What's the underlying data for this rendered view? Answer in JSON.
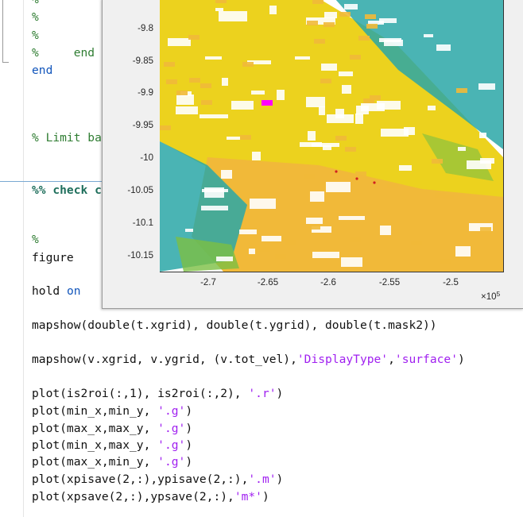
{
  "editor": {
    "lines": [
      {
        "id": "l1",
        "top": -10,
        "segments": [
          {
            "cls": "cm",
            "text": "%"
          }
        ]
      },
      {
        "id": "l2",
        "top": 12,
        "segments": [
          {
            "cls": "cm",
            "text": "%"
          }
        ]
      },
      {
        "id": "l3",
        "top": 35,
        "segments": [
          {
            "cls": "cm",
            "text": "%"
          }
        ]
      },
      {
        "id": "l4",
        "top": 57,
        "segments": [
          {
            "cls": "cm",
            "text": "%     end"
          }
        ]
      },
      {
        "id": "l5",
        "top": 79,
        "segments": [
          {
            "cls": "kw",
            "text": "end"
          }
        ]
      },
      {
        "id": "l6",
        "top": 164,
        "segments": [
          {
            "cls": "cm",
            "text": "% Limit ba"
          }
        ]
      },
      {
        "id": "l7",
        "top": 230,
        "segments": [
          {
            "cls": "kw-dark",
            "text": "%% check c"
          }
        ]
      },
      {
        "id": "l8",
        "top": 292,
        "segments": [
          {
            "cls": "cm",
            "text": "%"
          }
        ]
      },
      {
        "id": "l9",
        "top": 315,
        "segments": [
          {
            "cls": "",
            "text": "figure"
          }
        ]
      },
      {
        "id": "l10",
        "top": 357,
        "segments": [
          {
            "cls": "",
            "text": "hold "
          },
          {
            "cls": "kw",
            "text": "on"
          }
        ]
      },
      {
        "id": "l11",
        "top": 400,
        "segments": [
          {
            "cls": "",
            "text": "mapshow(double(t.xgrid), double(t.ygrid), double(t.mask2))"
          }
        ]
      },
      {
        "id": "l12",
        "top": 443,
        "segments": [
          {
            "cls": "",
            "text": "mapshow(v.xgrid, v.ygrid, (v.tot_vel),"
          },
          {
            "cls": "str",
            "text": "'DisplayType'"
          },
          {
            "cls": "",
            "text": ","
          },
          {
            "cls": "str",
            "text": "'surface'"
          },
          {
            "cls": "",
            "text": ")"
          }
        ]
      },
      {
        "id": "l13",
        "top": 486,
        "segments": [
          {
            "cls": "",
            "text": "plot(is2roi(:,1), is2roi(:,2), "
          },
          {
            "cls": "str",
            "text": "'.r'"
          },
          {
            "cls": "",
            "text": ")"
          }
        ]
      },
      {
        "id": "l14",
        "top": 508,
        "segments": [
          {
            "cls": "",
            "text": "plot(min_x,min_y, "
          },
          {
            "cls": "str",
            "text": "'.g'"
          },
          {
            "cls": "",
            "text": ")"
          }
        ]
      },
      {
        "id": "l15",
        "top": 530,
        "segments": [
          {
            "cls": "",
            "text": "plot(max_x,max_y, "
          },
          {
            "cls": "str",
            "text": "'.g'"
          },
          {
            "cls": "",
            "text": ")"
          }
        ]
      },
      {
        "id": "l16",
        "top": 551,
        "segments": [
          {
            "cls": "",
            "text": "plot(min_x,max_y, "
          },
          {
            "cls": "str",
            "text": "'.g'"
          },
          {
            "cls": "",
            "text": ")"
          }
        ]
      },
      {
        "id": "l17",
        "top": 572,
        "segments": [
          {
            "cls": "",
            "text": "plot(max_x,min_y, "
          },
          {
            "cls": "str",
            "text": "'.g'"
          },
          {
            "cls": "",
            "text": ")"
          }
        ]
      },
      {
        "id": "l18",
        "top": 594,
        "segments": [
          {
            "cls": "",
            "text": "plot(xpisave(2,:),ypisave(2,:),"
          },
          {
            "cls": "str",
            "text": "'.m'"
          },
          {
            "cls": "",
            "text": ")"
          }
        ]
      },
      {
        "id": "l19",
        "top": 616,
        "segments": [
          {
            "cls": "",
            "text": "plot(xpsave(2,:),ypsave(2,:),"
          },
          {
            "cls": "str",
            "text": "'m*'"
          },
          {
            "cls": "",
            "text": ")"
          }
        ]
      }
    ]
  },
  "figure": {
    "y_ticks": [
      "-9.8",
      "-9.85",
      "-9.9",
      "-9.95",
      "-10",
      "-10.05",
      "-10.1",
      "-10.15"
    ],
    "x_ticks": [
      "-2.7",
      "-2.65",
      "-2.6",
      "-2.55",
      "-2.5"
    ],
    "x_exponent_base": "×10",
    "x_exponent_power": "5",
    "colors": {
      "yellow": "#ecd21e",
      "gold": "#f1b939",
      "teal": "#2aa7a7",
      "green": "#7cbf43",
      "white": "#ffffff",
      "magenta": "#ff00ff"
    }
  }
}
